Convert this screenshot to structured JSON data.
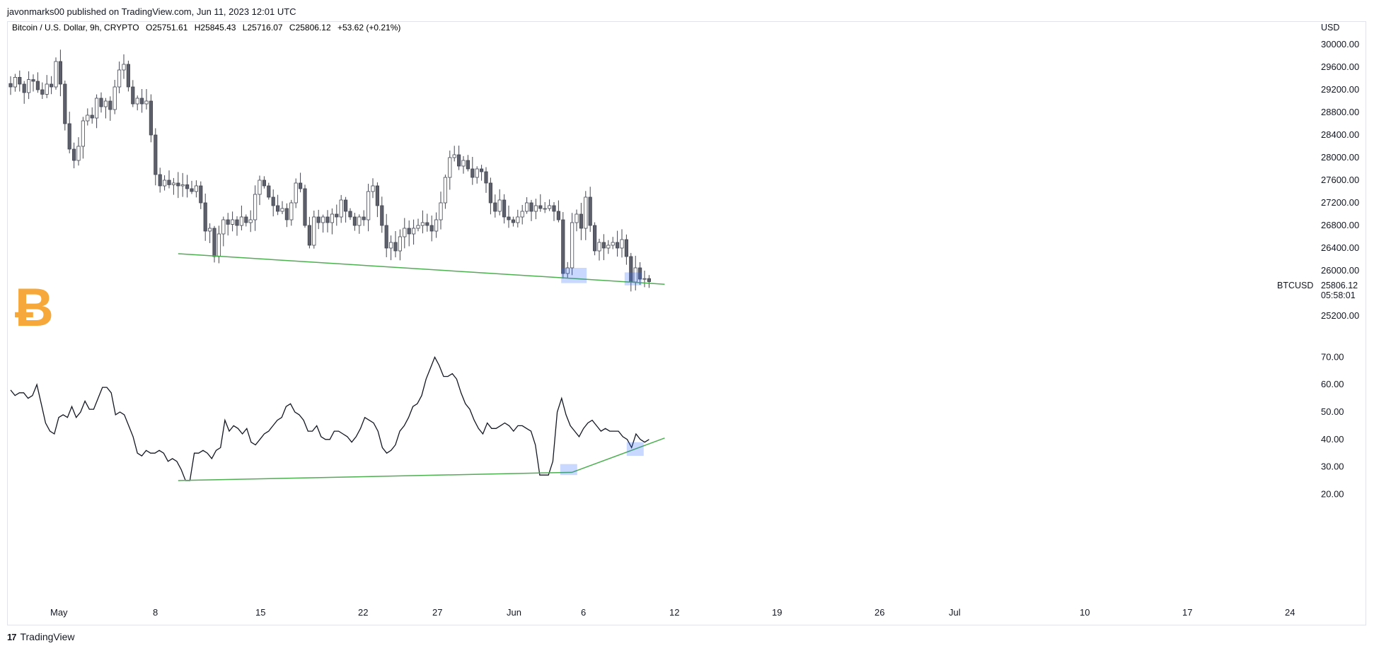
{
  "header": {
    "published_by": "javonmarks00 published on TradingView.com, Jun 11, 2023 12:01 UTC"
  },
  "legend": {
    "symbol": "Bitcoin / U.S. Dollar, 9h, CRYPTO",
    "o_label": "O",
    "o_value": "25751.61",
    "h_label": "H",
    "h_value": "25845.43",
    "l_label": "L",
    "l_value": "25716.07",
    "c_label": "C",
    "c_value": "25806.12",
    "change": "+53.62 (+0.21%)"
  },
  "currency": "USD",
  "price_marker": {
    "ticker": "BTCUSD",
    "value": "25806.12",
    "countdown": "05:58:01"
  },
  "footer": {
    "logo_glyph": "17",
    "brand": "TradingView"
  },
  "logo_glyph": "Ƀ",
  "colors": {
    "up_candle_fill": "#ffffff",
    "down_candle_fill": "#5d606b",
    "candle_outline": "#434651",
    "trendline": "#4caf50",
    "highlight": "#2962ff",
    "bitcoin_logo": "#f7a83a",
    "oscillator_line": "#131722"
  },
  "chart_data": [
    {
      "type": "candlestick",
      "ylim": [
        24900,
        30400
      ],
      "y_ticks": [
        "30000.00",
        "29600.00",
        "29200.00",
        "28800.00",
        "28400.00",
        "28000.00",
        "27600.00",
        "27200.00",
        "26800.00",
        "26400.00",
        "26000.00",
        "25200.00"
      ],
      "x_ticks": [
        "May",
        "8",
        "15",
        "22",
        "27",
        "Jun",
        "6",
        "12",
        "19",
        "26",
        "Jul",
        "10",
        "17",
        "24"
      ],
      "closes": [
        29250,
        29420,
        29300,
        29150,
        29380,
        29350,
        29200,
        29120,
        29300,
        29250,
        29700,
        29300,
        28600,
        28150,
        27950,
        28200,
        28650,
        28750,
        28700,
        29050,
        28900,
        29000,
        28850,
        29250,
        29550,
        29650,
        29250,
        28950,
        29050,
        28950,
        29000,
        28400,
        27700,
        27500,
        27600,
        27520,
        27550,
        27500,
        27520,
        27450,
        27400,
        27500,
        27200,
        26700,
        26750,
        26250,
        26650,
        26900,
        26820,
        26900,
        26800,
        26950,
        26850,
        26900,
        27350,
        27600,
        27500,
        27300,
        27150,
        27050,
        27100,
        26900,
        27200,
        27550,
        27450,
        26800,
        26450,
        26950,
        26850,
        26950,
        26850,
        27000,
        26950,
        27250,
        27050,
        26950,
        26800,
        26950,
        26900,
        27400,
        27500,
        27150,
        26800,
        26400,
        26500,
        26350,
        26600,
        26750,
        26650,
        26750,
        26800,
        26850,
        26800,
        26700,
        26900,
        27200,
        27650,
        28000,
        28050,
        27850,
        27950,
        27800,
        27650,
        27800,
        27750,
        27550,
        27200,
        27050,
        27250,
        26950,
        26900,
        26850,
        26950,
        27050,
        27200,
        27050,
        27150,
        27100,
        27100,
        27150,
        27050,
        26900,
        25950,
        26050,
        26850,
        27000,
        26750,
        27300,
        26800,
        26350,
        26500,
        26400,
        26450,
        26500,
        26400,
        26550,
        26250,
        25800,
        26050,
        25850,
        25860,
        25806
      ],
      "volatility_hint": "approximated from image"
    },
    {
      "type": "line",
      "name": "",
      "ylim": [
        17,
        75
      ],
      "y_ticks": [
        "70.00",
        "60.00",
        "50.00",
        "40.00",
        "30.00",
        "20.00"
      ],
      "values": [
        58,
        56,
        57,
        57,
        55,
        56,
        60,
        53,
        46,
        43,
        42,
        48,
        49,
        48,
        52,
        48,
        50,
        54,
        51,
        51,
        55,
        59,
        59,
        57,
        49,
        50,
        49,
        45,
        41,
        35,
        34,
        36,
        35,
        35,
        36,
        35,
        32,
        33,
        32,
        29,
        25,
        25,
        35,
        35,
        36,
        35,
        33,
        36,
        37,
        47,
        43,
        45,
        44,
        42,
        44,
        39,
        38,
        40,
        42,
        43,
        45,
        47,
        48,
        52,
        53,
        50,
        49,
        47,
        43,
        43,
        45,
        41,
        40,
        40,
        43,
        43,
        42,
        41,
        39,
        41,
        44,
        48,
        47,
        46,
        43,
        37,
        35,
        36,
        38,
        43,
        45,
        48,
        52,
        53,
        56,
        62,
        66,
        70,
        67,
        63,
        63,
        64,
        62,
        57,
        53,
        51,
        47,
        44,
        42,
        46,
        44,
        44,
        45,
        46,
        45,
        43,
        45,
        45,
        44,
        43,
        38,
        27,
        27,
        27,
        32,
        50,
        55,
        49,
        45,
        43,
        41,
        44,
        46,
        47,
        45,
        43,
        44,
        43,
        43,
        43,
        41,
        40,
        37,
        42,
        40,
        39,
        40
      ],
      "trendlines": "bullish divergence"
    }
  ]
}
